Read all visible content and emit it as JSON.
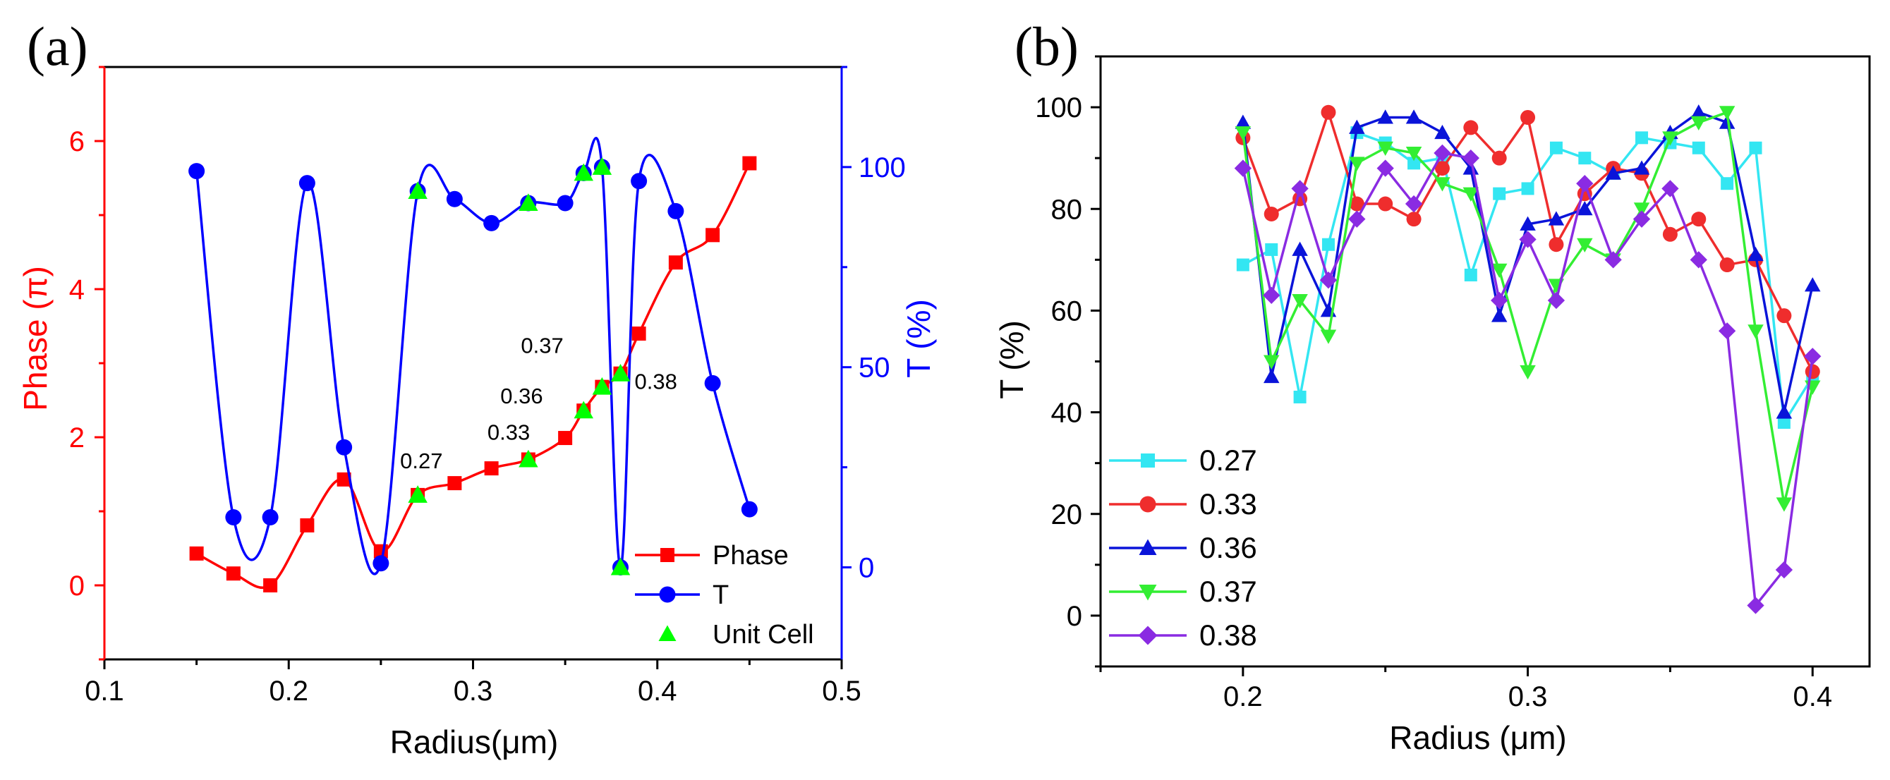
{
  "panels": {
    "a": {
      "label": "(a)"
    },
    "b": {
      "label": "(b)"
    }
  },
  "chart_data": [
    {
      "type": "line",
      "panel": "a",
      "xlabel": "Radius(μm)",
      "ylabel_left": "Phase (π)",
      "ylabel_right": "T (%)",
      "xlim": [
        0.1,
        0.5
      ],
      "ylim_left": [
        -1,
        7
      ],
      "ylim_right": [
        -23,
        125
      ],
      "x_ticks": [
        0.1,
        0.2,
        0.3,
        0.4,
        0.5
      ],
      "x_tick_labels": [
        "0.1",
        "0.2",
        "0.3",
        "0.4",
        "0.5"
      ],
      "y_left_ticks": [
        0,
        2,
        4,
        6
      ],
      "y_left_tick_labels": [
        "0",
        "2",
        "4",
        "6"
      ],
      "y_right_ticks": [
        0,
        50,
        100
      ],
      "y_right_tick_labels": [
        "0",
        "50",
        "100"
      ],
      "grid": false,
      "legend_position": "bottom-right",
      "colors": {
        "left_axis": "#ff0000",
        "right_axis": "#0000ff"
      },
      "series": [
        {
          "name": "Phase",
          "axis": "left",
          "color": "#ff0000",
          "marker": "square",
          "x": [
            0.15,
            0.17,
            0.19,
            0.21,
            0.23,
            0.25,
            0.27,
            0.29,
            0.31,
            0.33,
            0.35,
            0.36,
            0.37,
            0.38,
            0.39,
            0.41,
            0.43,
            0.45
          ],
          "y": [
            0.43,
            0.16,
            0.0,
            0.81,
            1.43,
            0.46,
            1.22,
            1.38,
            1.58,
            1.7,
            1.99,
            2.36,
            2.68,
            2.86,
            3.4,
            4.36,
            4.73,
            5.7
          ]
        },
        {
          "name": "T",
          "axis": "right",
          "color": "#0000ff",
          "marker": "circle",
          "x": [
            0.15,
            0.17,
            0.19,
            0.21,
            0.23,
            0.25,
            0.27,
            0.29,
            0.31,
            0.33,
            0.35,
            0.36,
            0.37,
            0.38,
            0.39,
            0.41,
            0.43,
            0.45
          ],
          "y": [
            99,
            12.5,
            12.5,
            96,
            30,
            1,
            94,
            92,
            86,
            91,
            91,
            98.5,
            100,
            0,
            96.5,
            89,
            46,
            14.5
          ]
        },
        {
          "name": "Unit Cell",
          "axis": "left",
          "color": "#00ff00",
          "marker": "triangle-up",
          "show_line": false,
          "x": [
            0.27,
            0.33,
            0.36,
            0.37,
            0.38
          ],
          "y": [
            1.22,
            1.7,
            2.36,
            2.68,
            2.86
          ]
        }
      ],
      "unit_cell_markers_on_T_curve": [
        {
          "x": 0.27,
          "t": 94
        },
        {
          "x": 0.33,
          "t": 91
        },
        {
          "x": 0.36,
          "t": 98.5
        },
        {
          "x": 0.37,
          "t": 100
        },
        {
          "x": 0.38,
          "t": 0
        }
      ],
      "annotations": [
        {
          "text": "0.27",
          "x": 0.27,
          "y": 1.22
        },
        {
          "text": "0.33",
          "x": 0.33,
          "y": 1.7
        },
        {
          "text": "0.36",
          "x": 0.36,
          "y": 2.36
        },
        {
          "text": "0.37",
          "x": 0.37,
          "y": 2.68
        },
        {
          "text": "0.38",
          "x": 0.38,
          "y": 2.86
        }
      ]
    },
    {
      "type": "line",
      "panel": "b",
      "xlabel": "Radius (μm)",
      "ylabel": "T (%)",
      "xlim": [
        0.15,
        0.42
      ],
      "ylim": [
        -10,
        110
      ],
      "x_ticks": [
        0.2,
        0.3,
        0.4
      ],
      "x_tick_labels": [
        "0.2",
        "0.3",
        "0.4"
      ],
      "y_ticks": [
        0,
        20,
        40,
        60,
        80,
        100
      ],
      "y_tick_labels": [
        "0",
        "20",
        "40",
        "60",
        "80",
        "100"
      ],
      "grid": false,
      "legend_position": "bottom-left",
      "x": [
        0.2,
        0.21,
        0.22,
        0.23,
        0.24,
        0.25,
        0.26,
        0.27,
        0.28,
        0.29,
        0.3,
        0.31,
        0.32,
        0.33,
        0.34,
        0.35,
        0.36,
        0.37,
        0.38,
        0.39,
        0.4
      ],
      "series": [
        {
          "name": "0.27",
          "color": "#33e6f2",
          "marker": "square",
          "values": [
            69,
            72,
            43,
            73,
            95,
            93,
            89,
            90,
            67,
            83,
            84,
            92,
            90,
            87,
            94,
            93,
            92,
            85,
            92,
            38,
            47
          ]
        },
        {
          "name": "0.33",
          "color": "#ef2d2d",
          "marker": "circle",
          "values": [
            94,
            79,
            82,
            99,
            81,
            81,
            78,
            88,
            96,
            90,
            98,
            73,
            83,
            88,
            87,
            75,
            78,
            69,
            70,
            59,
            48
          ]
        },
        {
          "name": "0.36",
          "color": "#0a14d9",
          "marker": "triangle-up",
          "values": [
            97,
            47,
            72,
            60,
            96,
            98,
            98,
            95,
            88,
            59,
            77,
            78,
            80,
            87,
            88,
            95,
            99,
            97,
            71,
            40,
            65
          ]
        },
        {
          "name": "0.37",
          "color": "#33ee33",
          "marker": "triangle-down",
          "values": [
            95,
            50,
            62,
            55,
            89,
            92,
            91,
            85,
            83,
            68,
            48,
            65,
            73,
            70,
            80,
            94,
            97,
            99,
            56,
            22,
            45
          ]
        },
        {
          "name": "0.38",
          "color": "#8a2be2",
          "marker": "diamond",
          "values": [
            88,
            63,
            84,
            66,
            78,
            88,
            81,
            91,
            90,
            62,
            74,
            62,
            85,
            70,
            78,
            84,
            70,
            56,
            2,
            9,
            51
          ]
        }
      ]
    }
  ]
}
